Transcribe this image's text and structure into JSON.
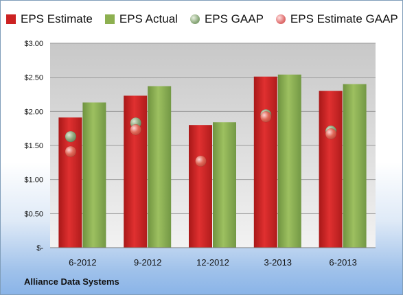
{
  "chart_data": {
    "type": "bar",
    "title": "",
    "categories": [
      "6-2012",
      "9-2012",
      "12-2012",
      "3-2013",
      "6-2013"
    ],
    "series": [
      {
        "name": "EPS Estimate",
        "kind": "bar",
        "color": "#cc2222",
        "values": [
          1.91,
          2.23,
          1.8,
          2.51,
          2.3
        ]
      },
      {
        "name": "EPS Actual",
        "kind": "bar",
        "color": "#8db050",
        "values": [
          2.13,
          2.37,
          1.84,
          2.54,
          2.4
        ]
      },
      {
        "name": "EPS GAAP",
        "kind": "marker",
        "color": "#9ab48a",
        "values": [
          1.63,
          1.83,
          null,
          1.95,
          1.71
        ]
      },
      {
        "name": "EPS Estimate GAAP",
        "kind": "marker",
        "color": "#e07070",
        "values": [
          1.41,
          1.73,
          1.27,
          1.92,
          1.67
        ]
      }
    ],
    "yticks": [
      "$3.00",
      "$2.50",
      "$2.00",
      "$1.50",
      "$1.00",
      "$0.50",
      "$-"
    ],
    "ylim": [
      0,
      3
    ],
    "grid": true,
    "legend": "top"
  },
  "footer": {
    "company": "Alliance Data Systems"
  }
}
